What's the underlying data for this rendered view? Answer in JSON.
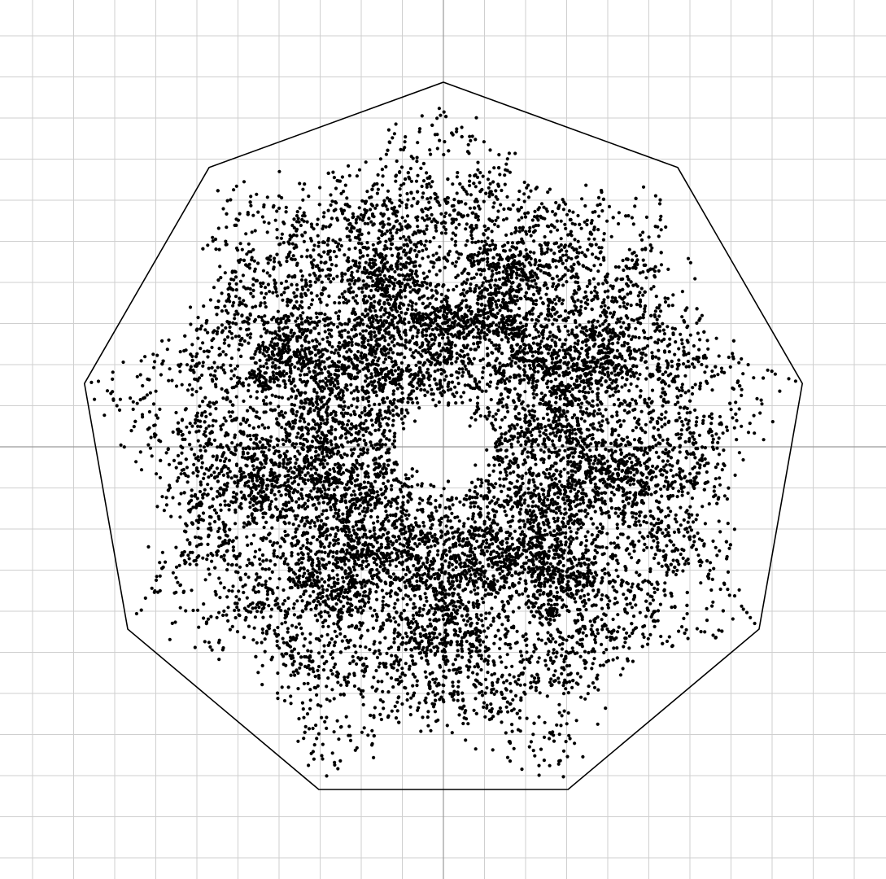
{
  "figure": {
    "kind": "chaos-game fractal on regular polygon",
    "polygon_vertices": 9,
    "grid_visible": true,
    "axes_visible": true,
    "colors": {
      "background": "#ffffff",
      "grid": "#cfcfcf",
      "axes": "#9a9a9a",
      "polygon": "#000000",
      "points": "#000000"
    }
  }
}
